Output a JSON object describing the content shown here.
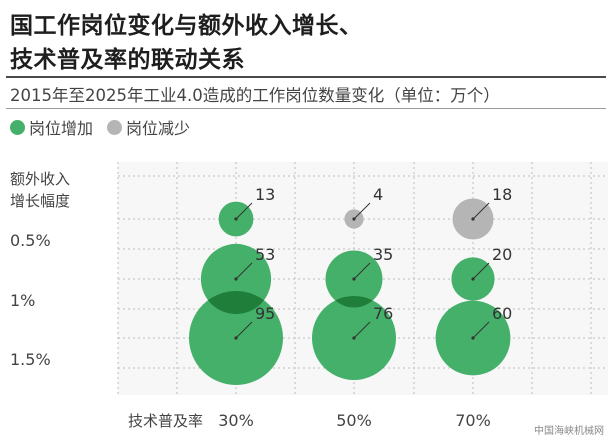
{
  "title": {
    "line1": "国工作岗位变化与额外收入增长、",
    "line2": "技术普及率的联动关系"
  },
  "subtitle": "2015年至2025年工业4.0造成的工作岗位数量变化（单位：万个）",
  "legend": [
    {
      "label": "岗位增加",
      "color": "#45b06a"
    },
    {
      "label": "岗位减少",
      "color": "#b5b5b5"
    }
  ],
  "chart_data": {
    "type": "bubble",
    "ylabel": [
      "额外收入",
      "增长幅度"
    ],
    "xlabel": "技术普及率",
    "x_categories": [
      "30%",
      "50%",
      "70%"
    ],
    "y_categories": [
      "0.5%",
      "1%",
      "1.5%"
    ],
    "colors": {
      "increase": "#45b06a",
      "decrease": "#b5b5b5",
      "overlap": "#1f7f3a"
    },
    "series": [
      {
        "x": "30%",
        "y": "0.5%",
        "value": 13,
        "change": "increase"
      },
      {
        "x": "30%",
        "y": "1%",
        "value": 53,
        "change": "increase"
      },
      {
        "x": "30%",
        "y": "1.5%",
        "value": 95,
        "change": "increase"
      },
      {
        "x": "50%",
        "y": "0.5%",
        "value": 4,
        "change": "decrease"
      },
      {
        "x": "50%",
        "y": "1%",
        "value": 35,
        "change": "increase"
      },
      {
        "x": "50%",
        "y": "1.5%",
        "value": 76,
        "change": "increase"
      },
      {
        "x": "70%",
        "y": "0.5%",
        "value": 18,
        "change": "decrease"
      },
      {
        "x": "70%",
        "y": "1%",
        "value": 20,
        "change": "increase"
      },
      {
        "x": "70%",
        "y": "1.5%",
        "value": 60,
        "change": "increase"
      }
    ]
  },
  "watermark": "中国海峡机械网"
}
